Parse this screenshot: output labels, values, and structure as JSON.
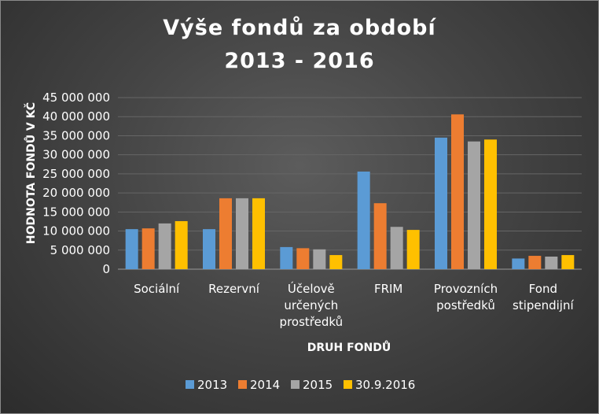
{
  "chart_data": {
    "type": "bar",
    "title_line1": "Výše fondů za období",
    "title_line2": "2013 - 2016",
    "xlabel": "DRUH FONDŮ",
    "ylabel": "HODNOTA FONDŮ V KČ",
    "ylim": [
      0,
      45000000
    ],
    "yticks": [
      0,
      5000000,
      10000000,
      15000000,
      20000000,
      25000000,
      30000000,
      35000000,
      40000000,
      45000000
    ],
    "ytick_labels": [
      "0",
      "5 000 000",
      "10 000 000",
      "15 000 000",
      "20 000 000",
      "25 000 000",
      "30 000 000",
      "35 000 000",
      "40 000 000",
      "45 000 000"
    ],
    "categories": [
      [
        "Sociální"
      ],
      [
        "Rezervní"
      ],
      [
        "Účelově",
        "určených",
        "prostředků"
      ],
      [
        "FRIM"
      ],
      [
        "Provozních",
        "postředků"
      ],
      [
        "Fond",
        "stipendijní"
      ]
    ],
    "series": [
      {
        "name": "2013",
        "color": "#5b9bd5",
        "values": [
          10500000,
          10500000,
          5800000,
          25600000,
          34500000,
          2800000
        ]
      },
      {
        "name": "2014",
        "color": "#ed7d31",
        "values": [
          10700000,
          18600000,
          5500000,
          17300000,
          40600000,
          3500000
        ]
      },
      {
        "name": "2015",
        "color": "#a5a5a5",
        "values": [
          12000000,
          18600000,
          5200000,
          11100000,
          33500000,
          3300000
        ]
      },
      {
        "name": "30.9.2016",
        "color": "#ffc000",
        "values": [
          12600000,
          18600000,
          3700000,
          10300000,
          34000000,
          3700000
        ]
      }
    ],
    "grid": true,
    "legend_position": "bottom"
  }
}
